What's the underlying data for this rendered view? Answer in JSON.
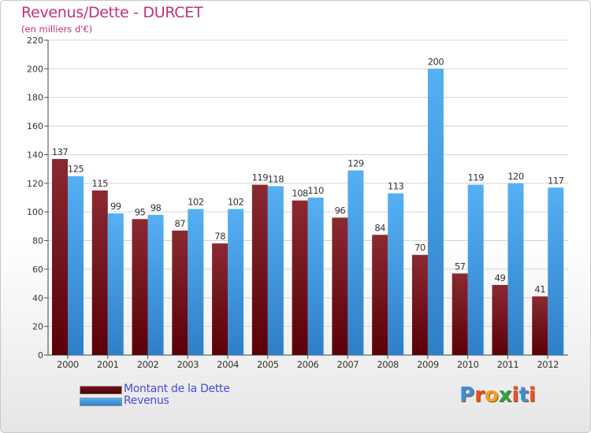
{
  "title": "Revenus/Dette - DURCET",
  "subtitle": "(en milliers d'€)",
  "logo_text": "Proxiti",
  "colors": {
    "dette": "#7a1016",
    "revenus": "#3d9ae6",
    "title": "#c0307a",
    "legend_text": "#4a4ad8"
  },
  "chart_data": {
    "type": "bar",
    "title": "Revenus/Dette - DURCET",
    "ylabel": "(en milliers d'€)",
    "xlabel": "",
    "ylim": [
      0,
      220
    ],
    "ytick_step": 20,
    "grid": true,
    "legend_position": "bottom-left",
    "categories": [
      "2000",
      "2001",
      "2002",
      "2003",
      "2004",
      "2005",
      "2006",
      "2007",
      "2008",
      "2009",
      "2010",
      "2011",
      "2012"
    ],
    "series": [
      {
        "name": "Montant de la Dette",
        "values": [
          137,
          115,
          95,
          87,
          78,
          119,
          108,
          96,
          84,
          70,
          57,
          49,
          41
        ]
      },
      {
        "name": "Revenus",
        "values": [
          125,
          99,
          98,
          102,
          102,
          118,
          110,
          129,
          113,
          200,
          119,
          120,
          117
        ]
      }
    ]
  }
}
